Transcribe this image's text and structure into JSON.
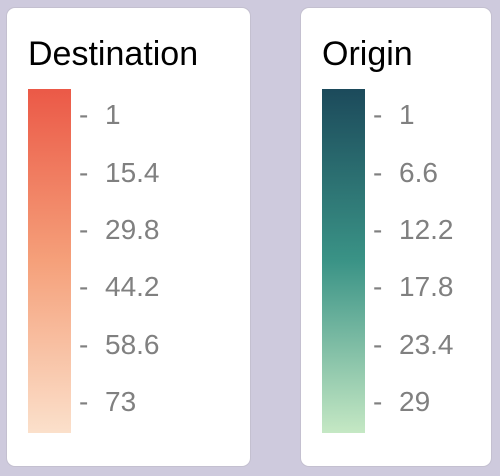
{
  "legends": [
    {
      "title": "Destination",
      "colors": [
        "#eb5947",
        "#f5a07a",
        "#fbe0cb"
      ],
      "ticks": [
        "1",
        "15.4",
        "29.8",
        "44.2",
        "58.6",
        "73"
      ]
    },
    {
      "title": "Origin",
      "colors": [
        "#1c4a5b",
        "#3a9386",
        "#c5e8c4"
      ],
      "ticks": [
        "1",
        "6.6",
        "12.2",
        "17.8",
        "23.4",
        "29"
      ]
    }
  ]
}
